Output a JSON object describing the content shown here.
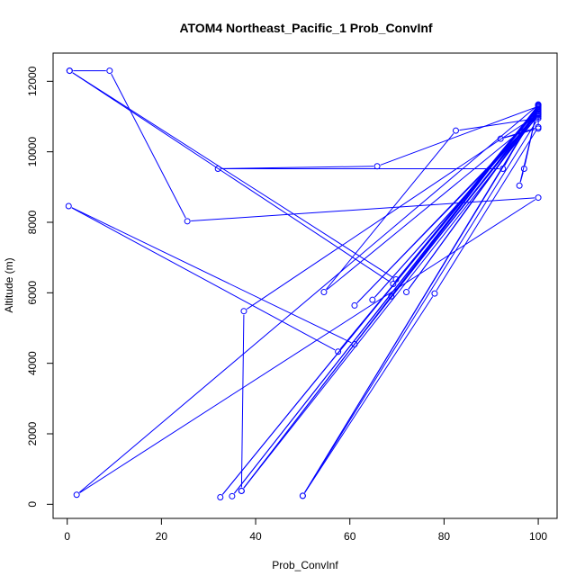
{
  "chart_data": {
    "type": "line",
    "title": "ATOM4 Northeast_Pacific_1 Prob_ConvInf",
    "xlabel": "Prob_ConvInf",
    "ylabel": "Altitude (m)",
    "xlim": [
      -3,
      104
    ],
    "ylim": [
      -400,
      12800
    ],
    "x_ticks": [
      0,
      20,
      40,
      60,
      80,
      100
    ],
    "y_ticks": [
      0,
      2000,
      4000,
      6000,
      8000,
      10000,
      12000
    ],
    "grid": false,
    "legend": "none",
    "color": "#0000ff",
    "series": [
      {
        "points": [
          [
            0.5,
            12300
          ],
          [
            9.0,
            12300
          ],
          [
            25.5,
            8030
          ],
          [
            100,
            8700
          ],
          [
            2.0,
            270
          ],
          [
            100,
            11330
          ],
          [
            37.0,
            380
          ],
          [
            100,
            11300
          ],
          [
            35.0,
            230
          ],
          [
            100,
            11270
          ],
          [
            32.5,
            200
          ],
          [
            100,
            11240
          ],
          [
            50.0,
            240
          ],
          [
            100,
            11210
          ],
          [
            57.5,
            4330
          ],
          [
            0.3,
            8460
          ],
          [
            61.0,
            4540
          ],
          [
            100,
            11180
          ],
          [
            72.0,
            6020
          ],
          [
            100,
            11140
          ],
          [
            68.8,
            5900
          ],
          [
            100,
            11100
          ],
          [
            64.8,
            5800
          ],
          [
            100,
            11070
          ],
          [
            37.5,
            5480
          ],
          [
            37.0,
            380
          ],
          [
            100,
            11040
          ],
          [
            61.0,
            5640
          ],
          [
            100,
            11000
          ],
          [
            54.5,
            6020
          ],
          [
            82.5,
            10600
          ],
          [
            100,
            10950
          ],
          [
            50.0,
            240
          ],
          [
            78.0,
            5980
          ],
          [
            100,
            10700
          ],
          [
            92.0,
            10370
          ],
          [
            100,
            10660
          ],
          [
            100,
            11290
          ],
          [
            65.8,
            9590
          ],
          [
            32.0,
            9520
          ],
          [
            92.5,
            9520
          ],
          [
            100,
            11340
          ],
          [
            97.0,
            9520
          ],
          [
            96.0,
            9040
          ],
          [
            100,
            11300
          ],
          [
            69.2,
            6250
          ],
          [
            0.5,
            12300
          ],
          [
            69.8,
            6380
          ]
        ]
      }
    ]
  }
}
